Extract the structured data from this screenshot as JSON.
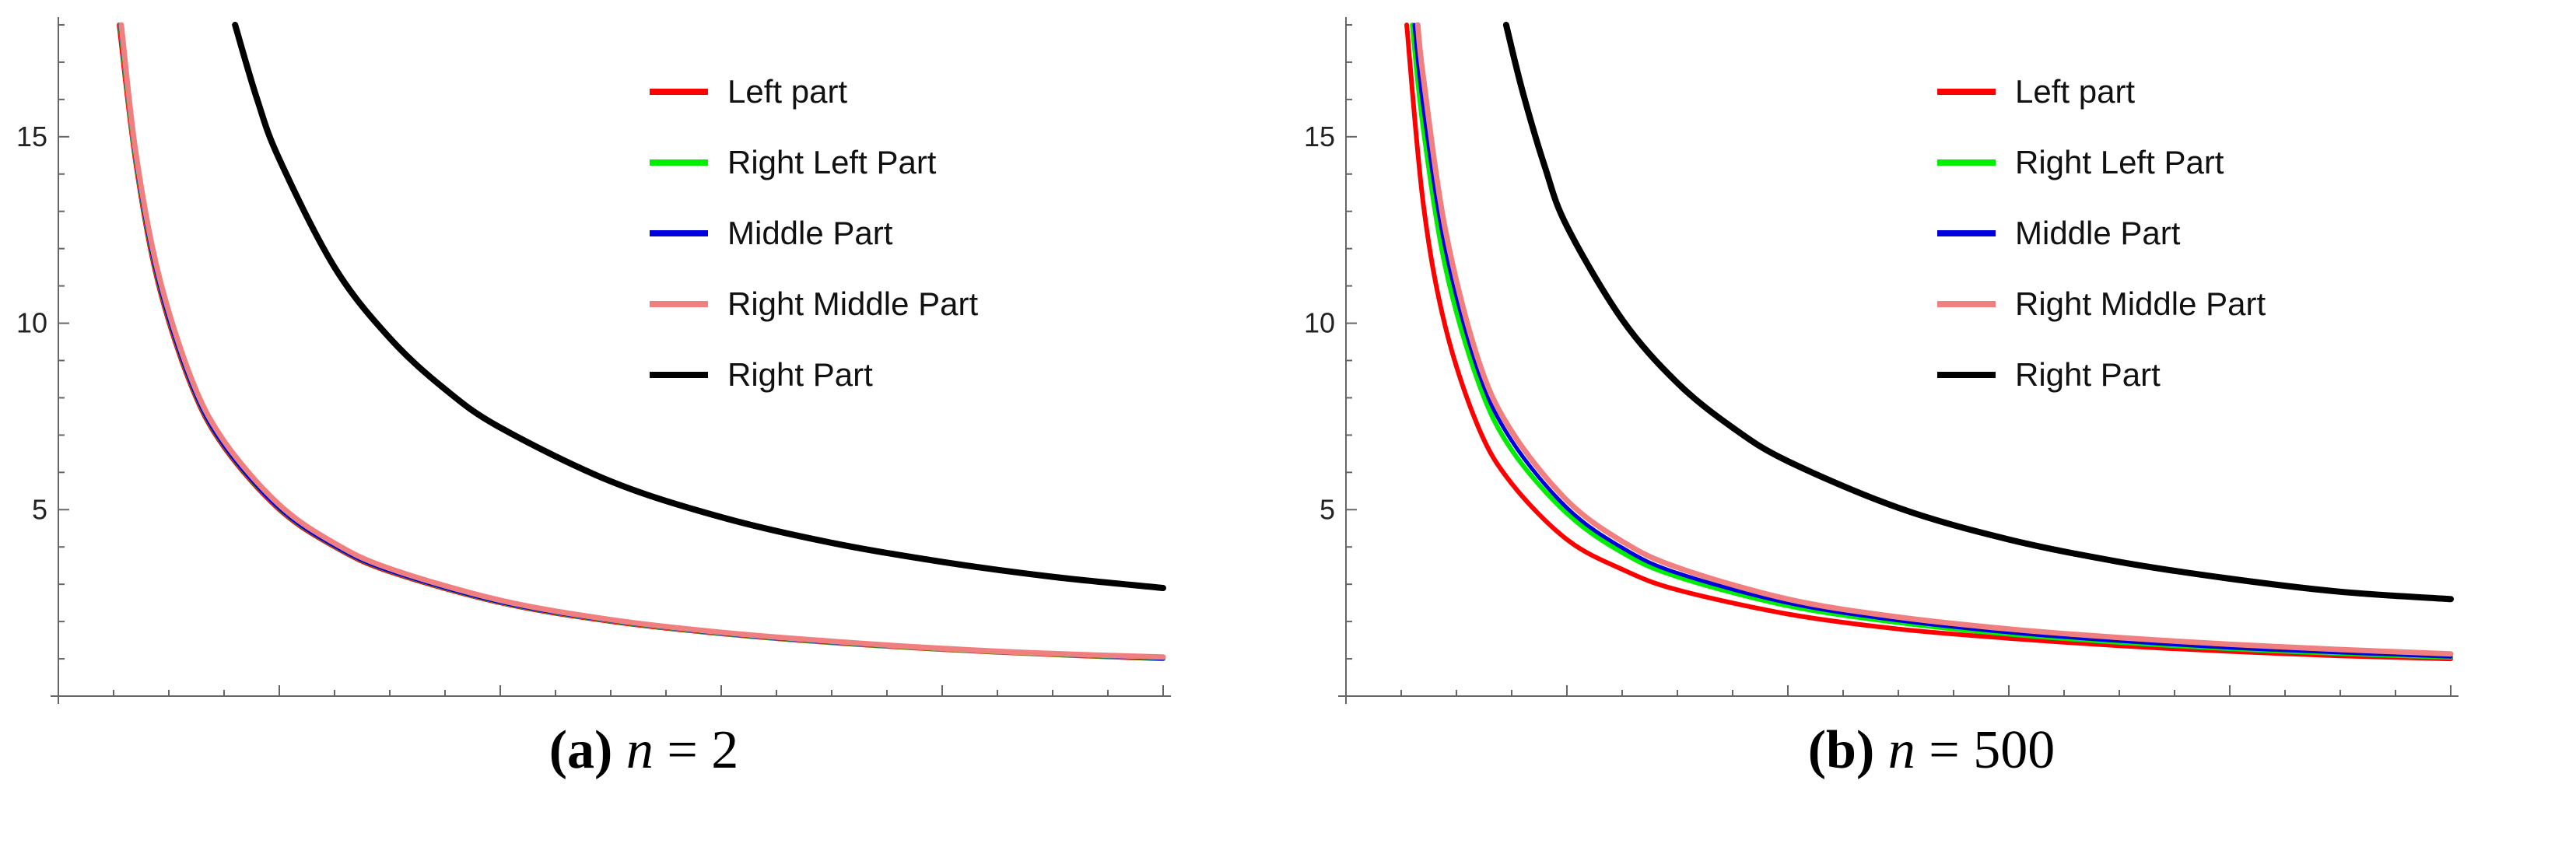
{
  "chart_data": [
    {
      "type": "line",
      "caption": {
        "label": "(a)",
        "var": "n",
        "eq": " = ",
        "value": "2"
      },
      "xlim": [
        0,
        1.0
      ],
      "ylim": [
        0,
        18
      ],
      "xticks": [
        "0.2",
        "0.4",
        "0.6",
        "0.8",
        "1.0"
      ],
      "yticks": [
        "5",
        "10",
        "15"
      ],
      "legend_position": "top-right",
      "series": [
        {
          "name": "Left part",
          "color": "#ff0000",
          "x": [
            0.055,
            0.07,
            0.09,
            0.12,
            0.15,
            0.2,
            0.25,
            0.3,
            0.4,
            0.5,
            0.6,
            0.7,
            0.8,
            0.9,
            1.0
          ],
          "y": [
            18,
            14.3,
            11.1,
            8.33,
            6.67,
            5.0,
            4.0,
            3.33,
            2.5,
            2.0,
            1.67,
            1.43,
            1.25,
            1.11,
            1.0
          ]
        },
        {
          "name": "Right Left Part",
          "color": "#00ee00",
          "x": [
            0.056,
            0.07,
            0.09,
            0.12,
            0.15,
            0.2,
            0.25,
            0.3,
            0.4,
            0.5,
            0.6,
            0.7,
            0.8,
            0.9,
            1.0
          ],
          "y": [
            18,
            14.4,
            11.2,
            8.4,
            6.72,
            5.04,
            4.03,
            3.36,
            2.52,
            2.02,
            1.68,
            1.44,
            1.26,
            1.12,
            1.01
          ]
        },
        {
          "name": "Middle Part",
          "color": "#0000dd",
          "x": [
            0.056,
            0.07,
            0.09,
            0.12,
            0.15,
            0.2,
            0.25,
            0.3,
            0.4,
            0.5,
            0.6,
            0.7,
            0.8,
            0.9,
            1.0
          ],
          "y": [
            18,
            14.4,
            11.2,
            8.4,
            6.72,
            5.04,
            4.03,
            3.36,
            2.52,
            2.02,
            1.68,
            1.44,
            1.26,
            1.12,
            1.01
          ]
        },
        {
          "name": "Right Middle Part",
          "color": "#f08080",
          "x": [
            0.057,
            0.07,
            0.09,
            0.12,
            0.15,
            0.2,
            0.25,
            0.3,
            0.4,
            0.5,
            0.6,
            0.7,
            0.8,
            0.9,
            1.0
          ],
          "y": [
            18,
            14.6,
            11.4,
            8.55,
            6.84,
            5.13,
            4.1,
            3.42,
            2.57,
            2.05,
            1.71,
            1.47,
            1.28,
            1.14,
            1.05
          ]
        },
        {
          "name": "Right Part",
          "color": "#000000",
          "x": [
            0.16,
            0.18,
            0.2,
            0.25,
            0.3,
            0.35,
            0.4,
            0.5,
            0.6,
            0.7,
            0.8,
            0.9,
            1.0
          ],
          "y": [
            18,
            16.0,
            14.4,
            11.5,
            9.6,
            8.23,
            7.2,
            5.76,
            4.8,
            4.11,
            3.6,
            3.2,
            2.9
          ]
        }
      ]
    },
    {
      "type": "line",
      "caption": {
        "label": "(b)",
        "var": "n",
        "eq": " = ",
        "value": "500"
      },
      "xlim": [
        0,
        1.0
      ],
      "ylim": [
        0,
        18
      ],
      "xticks": [
        "0.2",
        "0.4",
        "0.6",
        "0.8",
        "1.0"
      ],
      "yticks": [
        "5",
        "10",
        "15"
      ],
      "legend_position": "top-right",
      "series": [
        {
          "name": "Left part",
          "color": "#ff0000",
          "x": [
            0.055,
            0.07,
            0.09,
            0.12,
            0.15,
            0.2,
            0.25,
            0.3,
            0.4,
            0.5,
            0.6,
            0.7,
            0.8,
            0.9,
            1.0
          ],
          "y": [
            18,
            13.2,
            9.9,
            7.2,
            5.7,
            4.2,
            3.4,
            2.85,
            2.2,
            1.8,
            1.55,
            1.35,
            1.2,
            1.08,
            1.0
          ]
        },
        {
          "name": "Right Left Part",
          "color": "#00ee00",
          "x": [
            0.06,
            0.07,
            0.09,
            0.12,
            0.15,
            0.2,
            0.25,
            0.3,
            0.4,
            0.5,
            0.6,
            0.7,
            0.8,
            0.9,
            1.0
          ],
          "y": [
            18,
            15.2,
            11.5,
            8.4,
            6.6,
            4.9,
            3.85,
            3.2,
            2.42,
            1.97,
            1.66,
            1.44,
            1.27,
            1.14,
            1.04
          ]
        },
        {
          "name": "Middle Part",
          "color": "#0000dd",
          "x": [
            0.062,
            0.07,
            0.09,
            0.12,
            0.15,
            0.2,
            0.25,
            0.3,
            0.4,
            0.5,
            0.6,
            0.7,
            0.8,
            0.9,
            1.0
          ],
          "y": [
            18,
            15.8,
            12.0,
            8.7,
            6.85,
            5.05,
            3.98,
            3.3,
            2.5,
            2.03,
            1.71,
            1.48,
            1.3,
            1.17,
            1.06
          ]
        },
        {
          "name": "Right Middle Part",
          "color": "#f08080",
          "x": [
            0.065,
            0.07,
            0.09,
            0.12,
            0.15,
            0.2,
            0.25,
            0.3,
            0.4,
            0.5,
            0.6,
            0.7,
            0.8,
            0.9,
            1.0
          ],
          "y": [
            18,
            16.6,
            12.5,
            9.0,
            7.1,
            5.25,
            4.15,
            3.45,
            2.6,
            2.12,
            1.8,
            1.57,
            1.39,
            1.25,
            1.13
          ]
        },
        {
          "name": "Right Part",
          "color": "#000000",
          "x": [
            0.145,
            0.16,
            0.18,
            0.2,
            0.25,
            0.3,
            0.35,
            0.4,
            0.5,
            0.6,
            0.7,
            0.8,
            0.9,
            1.0
          ],
          "y": [
            18,
            16.2,
            14.2,
            12.6,
            10.1,
            8.4,
            7.2,
            6.3,
            5.05,
            4.2,
            3.6,
            3.15,
            2.8,
            2.6
          ]
        }
      ]
    }
  ]
}
